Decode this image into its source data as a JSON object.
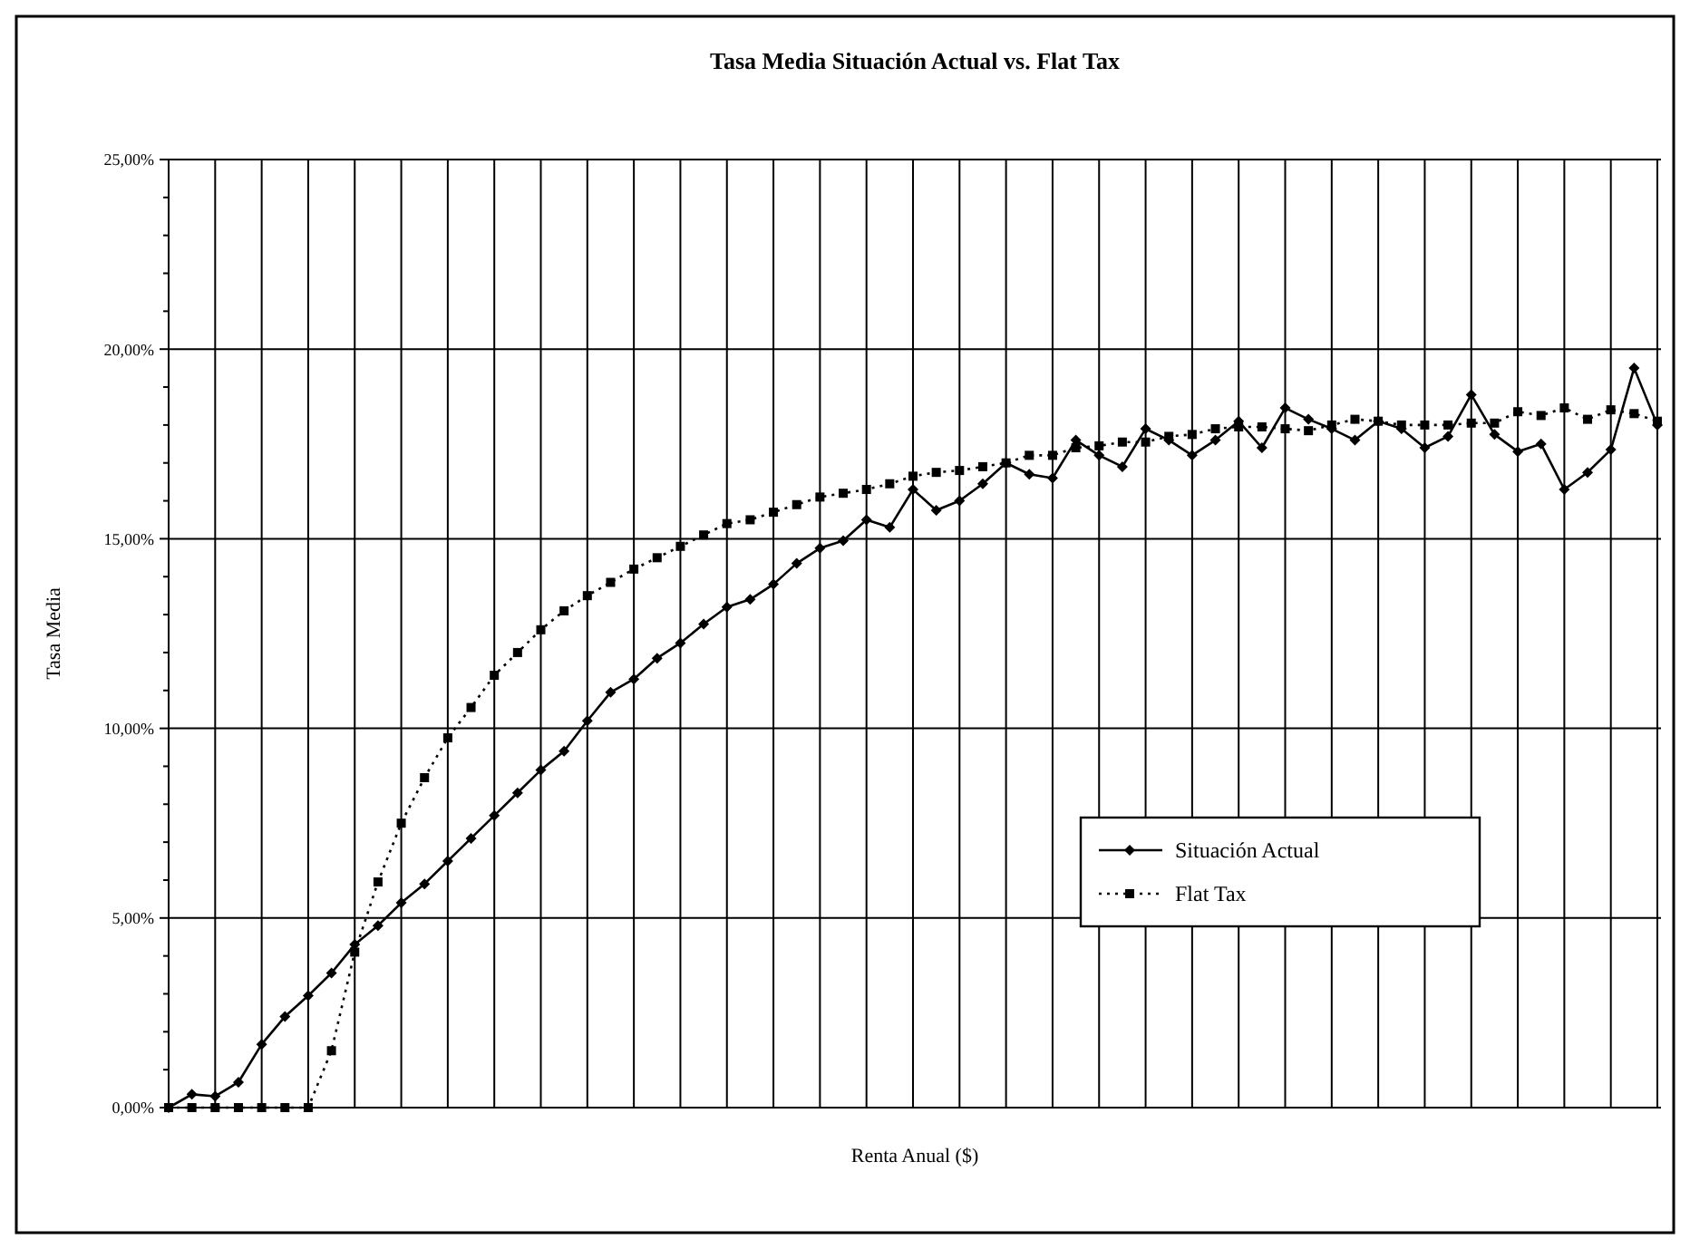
{
  "chart_data": {
    "type": "line",
    "title": "Tasa Media Situación Actual vs. Flat Tax",
    "xlabel": "Renta Anual ($)",
    "ylabel": "Tasa Media",
    "categories": [
      null,
      null,
      null,
      null,
      null,
      null,
      null,
      null,
      null,
      null,
      null,
      null,
      null,
      null,
      null,
      null,
      null,
      null,
      null,
      null,
      null,
      null,
      null,
      null,
      null,
      null,
      null,
      null,
      null,
      null,
      null,
      null,
      null,
      null,
      null,
      null,
      null,
      null,
      null,
      null,
      null,
      null,
      null,
      null,
      null,
      null,
      null,
      null,
      null,
      null,
      null,
      null,
      null,
      null,
      null,
      null,
      null,
      null,
      null,
      null,
      null,
      null,
      null,
      null,
      null
    ],
    "series": [
      {
        "name": "Situación Actual",
        "color": "#000000",
        "marker": "diamond",
        "line_style": "solid",
        "values": [
          0,
          0.35,
          0.3,
          0.67,
          1.67,
          2.4,
          2.95,
          3.55,
          4.3,
          4.8,
          5.4,
          5.9,
          6.5,
          7.1,
          7.7,
          8.3,
          8.9,
          9.4,
          10.2,
          10.95,
          11.3,
          11.85,
          12.25,
          12.75,
          13.2,
          13.4,
          13.8,
          14.35,
          14.75,
          14.95,
          15.5,
          15.3,
          16.3,
          15.75,
          16.0,
          16.45,
          17.0,
          16.7,
          16.6,
          17.6,
          17.2,
          16.9,
          17.9,
          17.6,
          17.2,
          17.6,
          18.1,
          17.4,
          18.45,
          18.15,
          17.9,
          17.6,
          18.1,
          17.9,
          17.4,
          17.7,
          18.8,
          17.75,
          17.3,
          17.5,
          16.3,
          16.75,
          17.35,
          19.5,
          18.0
        ]
      },
      {
        "name": "Flat Tax",
        "color": "#000000",
        "marker": "square",
        "line_style": "dotted",
        "values": [
          0,
          0,
          0,
          0,
          0,
          0,
          0,
          1.5,
          4.1,
          5.95,
          7.5,
          8.7,
          9.75,
          10.55,
          11.4,
          12.0,
          12.6,
          13.1,
          13.5,
          13.85,
          14.2,
          14.5,
          14.8,
          15.1,
          15.4,
          15.5,
          15.7,
          15.9,
          16.1,
          16.2,
          16.3,
          16.45,
          16.65,
          16.75,
          16.8,
          16.9,
          17.0,
          17.2,
          17.2,
          17.4,
          17.45,
          17.55,
          17.55,
          17.7,
          17.75,
          17.9,
          17.95,
          17.95,
          17.9,
          17.85,
          18.0,
          18.15,
          18.1,
          18.0,
          18.0,
          18.0,
          18.05,
          18.05,
          18.35,
          18.25,
          18.45,
          18.15,
          18.4,
          18.3,
          18.1
        ]
      }
    ],
    "ylim": [
      0,
      25
    ],
    "yticks": [
      {
        "value": 0,
        "label": "0,00%"
      },
      {
        "value": 1,
        "label": null
      },
      {
        "value": 2,
        "label": null
      },
      {
        "value": 3,
        "label": null
      },
      {
        "value": 4,
        "label": null
      },
      {
        "value": 5,
        "label": "5,00%"
      },
      {
        "value": 6,
        "label": null
      },
      {
        "value": 7,
        "label": null
      },
      {
        "value": 8,
        "label": null
      },
      {
        "value": 9,
        "label": null
      },
      {
        "value": 10,
        "label": "10,00%"
      },
      {
        "value": 11,
        "label": null
      },
      {
        "value": 12,
        "label": null
      },
      {
        "value": 13,
        "label": null
      },
      {
        "value": 14,
        "label": null
      },
      {
        "value": 15,
        "label": "15,00%"
      },
      {
        "value": 16,
        "label": null
      },
      {
        "value": 17,
        "label": null
      },
      {
        "value": 18,
        "label": null
      },
      {
        "value": 19,
        "label": null
      },
      {
        "value": 20,
        "label": "20,00%"
      },
      {
        "value": 21,
        "label": null
      },
      {
        "value": 22,
        "label": null
      },
      {
        "value": 23,
        "label": null
      },
      {
        "value": 24,
        "label": null
      },
      {
        "value": 25,
        "label": "25,00%"
      }
    ],
    "grid": true,
    "legend": "bottom right"
  }
}
